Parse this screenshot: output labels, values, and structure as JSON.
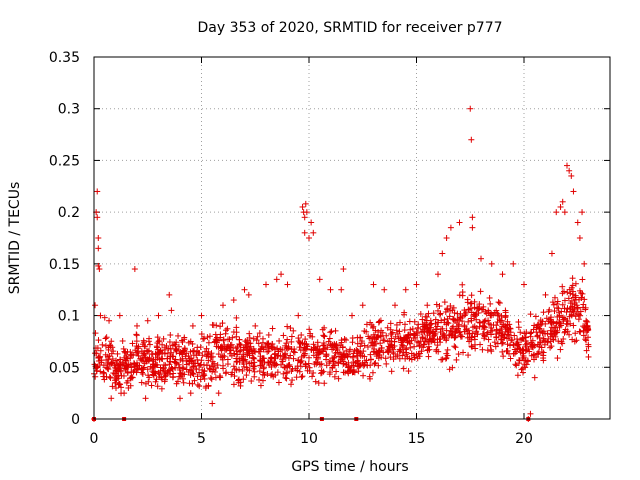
{
  "chart_data": {
    "type": "scatter",
    "title": "Day 353 of 2020, SRMTID for receiver p777",
    "xlabel": "GPS time / hours",
    "ylabel": "SRMTID / TECUs",
    "xlim": [
      0,
      24
    ],
    "ylim": [
      0,
      0.35
    ],
    "xticks": [
      0,
      5,
      10,
      15,
      20
    ],
    "yticks": [
      0,
      0.05,
      0.1,
      0.15,
      0.2,
      0.25,
      0.3,
      0.35
    ],
    "xtick_labels": [
      "0",
      "5",
      "10",
      "15",
      "20"
    ],
    "ytick_labels": [
      "0",
      "0.05",
      "0.1",
      "0.15",
      "0.2",
      "0.25",
      "0.3",
      "0.35"
    ],
    "grid": true,
    "marker": "plus",
    "color": "#e00000",
    "series": [
      {
        "name": "SRMTID",
        "envelope": [
          {
            "x": 0.0,
            "median": 0.055,
            "spread": 0.035
          },
          {
            "x": 0.5,
            "median": 0.06,
            "spread": 0.035
          },
          {
            "x": 1.0,
            "median": 0.05,
            "spread": 0.03
          },
          {
            "x": 2.0,
            "median": 0.058,
            "spread": 0.035
          },
          {
            "x": 3.0,
            "median": 0.055,
            "spread": 0.035
          },
          {
            "x": 4.0,
            "median": 0.055,
            "spread": 0.035
          },
          {
            "x": 5.0,
            "median": 0.055,
            "spread": 0.035
          },
          {
            "x": 6.0,
            "median": 0.07,
            "spread": 0.04
          },
          {
            "x": 7.0,
            "median": 0.06,
            "spread": 0.035
          },
          {
            "x": 8.0,
            "median": 0.06,
            "spread": 0.035
          },
          {
            "x": 9.0,
            "median": 0.06,
            "spread": 0.035
          },
          {
            "x": 10.0,
            "median": 0.06,
            "spread": 0.035
          },
          {
            "x": 11.0,
            "median": 0.065,
            "spread": 0.035
          },
          {
            "x": 12.0,
            "median": 0.055,
            "spread": 0.03
          },
          {
            "x": 13.0,
            "median": 0.07,
            "spread": 0.035
          },
          {
            "x": 14.0,
            "median": 0.075,
            "spread": 0.035
          },
          {
            "x": 15.0,
            "median": 0.075,
            "spread": 0.035
          },
          {
            "x": 16.0,
            "median": 0.085,
            "spread": 0.04
          },
          {
            "x": 17.0,
            "median": 0.09,
            "spread": 0.045
          },
          {
            "x": 18.0,
            "median": 0.095,
            "spread": 0.045
          },
          {
            "x": 19.0,
            "median": 0.085,
            "spread": 0.04
          },
          {
            "x": 20.0,
            "median": 0.065,
            "spread": 0.035
          },
          {
            "x": 21.0,
            "median": 0.085,
            "spread": 0.04
          },
          {
            "x": 22.0,
            "median": 0.1,
            "spread": 0.05
          },
          {
            "x": 22.5,
            "median": 0.11,
            "spread": 0.05
          },
          {
            "x": 23.0,
            "median": 0.09,
            "spread": 0.03
          }
        ],
        "points": [
          [
            0.0,
            0.0
          ],
          [
            0.05,
            0.11
          ],
          [
            0.1,
            0.2
          ],
          [
            0.15,
            0.22
          ],
          [
            0.15,
            0.195
          ],
          [
            0.2,
            0.175
          ],
          [
            0.2,
            0.165
          ],
          [
            0.2,
            0.148
          ],
          [
            0.25,
            0.145
          ],
          [
            0.3,
            0.1
          ],
          [
            0.5,
            0.098
          ],
          [
            0.7,
            0.095
          ],
          [
            0.8,
            0.02
          ],
          [
            1.0,
            0.035
          ],
          [
            1.2,
            0.1
          ],
          [
            1.4,
            0.025
          ],
          [
            1.6,
            0.03
          ],
          [
            1.8,
            0.04
          ],
          [
            1.9,
            0.145
          ],
          [
            2.0,
            0.09
          ],
          [
            2.4,
            0.02
          ],
          [
            2.5,
            0.095
          ],
          [
            3.0,
            0.1
          ],
          [
            3.5,
            0.12
          ],
          [
            3.6,
            0.105
          ],
          [
            4.0,
            0.02
          ],
          [
            4.5,
            0.025
          ],
          [
            4.6,
            0.09
          ],
          [
            5.0,
            0.1
          ],
          [
            5.2,
            0.03
          ],
          [
            5.5,
            0.015
          ],
          [
            5.8,
            0.025
          ],
          [
            6.0,
            0.11
          ],
          [
            6.5,
            0.115
          ],
          [
            7.0,
            0.125
          ],
          [
            7.2,
            0.12
          ],
          [
            7.5,
            0.09
          ],
          [
            8.0,
            0.13
          ],
          [
            8.5,
            0.135
          ],
          [
            8.7,
            0.14
          ],
          [
            9.0,
            0.13
          ],
          [
            9.5,
            0.1
          ],
          [
            9.7,
            0.205
          ],
          [
            9.75,
            0.2
          ],
          [
            9.8,
            0.195
          ],
          [
            9.8,
            0.18
          ],
          [
            9.85,
            0.208
          ],
          [
            9.9,
            0.2
          ],
          [
            10.0,
            0.175
          ],
          [
            10.1,
            0.19
          ],
          [
            10.2,
            0.18
          ],
          [
            10.5,
            0.135
          ],
          [
            11.0,
            0.125
          ],
          [
            11.5,
            0.125
          ],
          [
            11.6,
            0.145
          ],
          [
            12.0,
            0.1
          ],
          [
            12.5,
            0.11
          ],
          [
            13.0,
            0.13
          ],
          [
            13.5,
            0.125
          ],
          [
            14.0,
            0.11
          ],
          [
            14.5,
            0.125
          ],
          [
            15.0,
            0.13
          ],
          [
            15.5,
            0.11
          ],
          [
            16.0,
            0.14
          ],
          [
            16.2,
            0.16
          ],
          [
            16.4,
            0.175
          ],
          [
            16.6,
            0.185
          ],
          [
            17.0,
            0.19
          ],
          [
            17.5,
            0.3
          ],
          [
            17.55,
            0.27
          ],
          [
            17.6,
            0.195
          ],
          [
            17.6,
            0.185
          ],
          [
            18.0,
            0.155
          ],
          [
            18.5,
            0.15
          ],
          [
            19.0,
            0.14
          ],
          [
            19.5,
            0.15
          ],
          [
            20.0,
            0.13
          ],
          [
            20.2,
            0.0
          ],
          [
            20.3,
            0.005
          ],
          [
            20.5,
            0.04
          ],
          [
            21.0,
            0.12
          ],
          [
            21.3,
            0.16
          ],
          [
            21.5,
            0.2
          ],
          [
            21.7,
            0.205
          ],
          [
            21.8,
            0.21
          ],
          [
            21.9,
            0.2
          ],
          [
            22.0,
            0.245
          ],
          [
            22.1,
            0.24
          ],
          [
            22.2,
            0.235
          ],
          [
            22.3,
            0.22
          ],
          [
            22.5,
            0.19
          ],
          [
            22.6,
            0.175
          ],
          [
            22.7,
            0.2
          ],
          [
            22.8,
            0.15
          ],
          [
            22.9,
            0.09
          ],
          [
            23.0,
            0.07
          ],
          [
            23.0,
            0.06
          ]
        ],
        "gaps_at_zero": [
          0.0,
          1.4,
          10.6,
          12.2,
          20.2
        ]
      }
    ]
  }
}
